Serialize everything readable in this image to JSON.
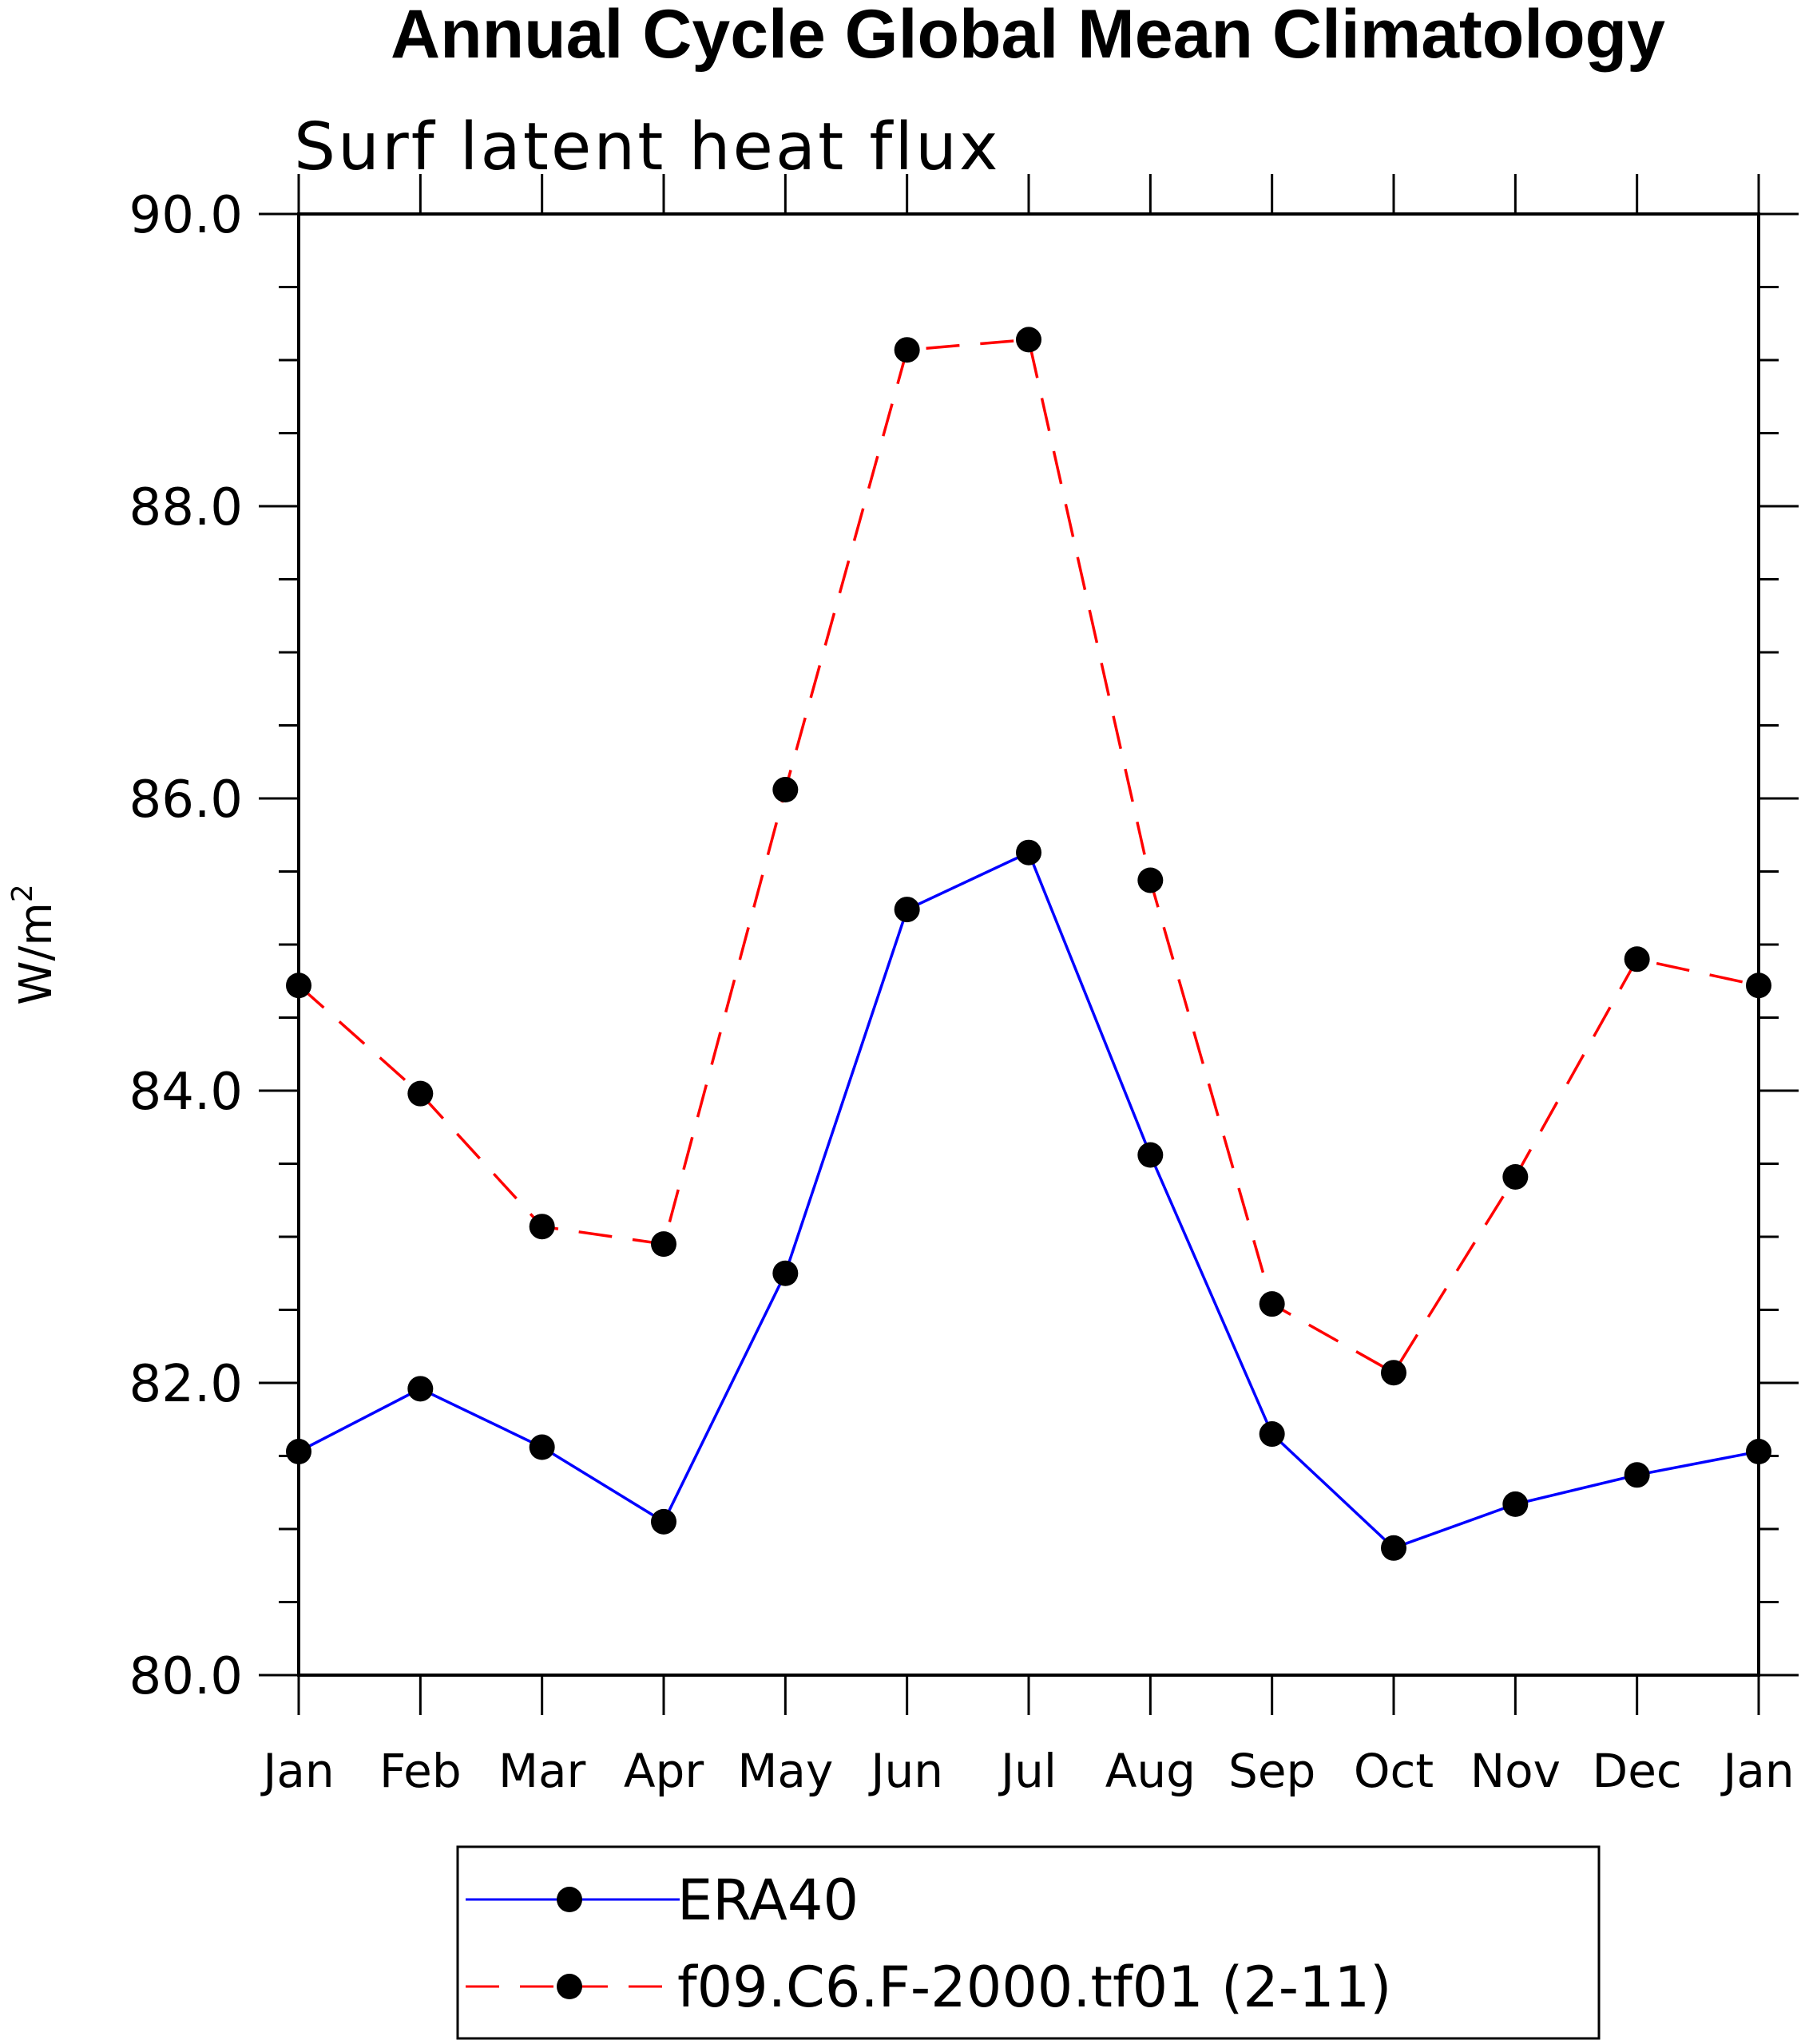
{
  "chart_data": {
    "type": "line",
    "title": "Annual Cycle Global Mean Climatology",
    "subtitle": "Surf latent heat flux",
    "ylabel": "W/m",
    "ylabel_superscript": "2",
    "ylim": [
      80.0,
      90.0
    ],
    "yticks": [
      "80.0",
      "82.0",
      "84.0",
      "86.0",
      "88.0",
      "90.0"
    ],
    "ytick_values": [
      80,
      82,
      84,
      86,
      88,
      90
    ],
    "categories": [
      "Jan",
      "Feb",
      "Mar",
      "Apr",
      "May",
      "Jun",
      "Jul",
      "Aug",
      "Sep",
      "Oct",
      "Nov",
      "Dec",
      "Jan"
    ],
    "series": [
      {
        "name": "ERA40",
        "color": "#0000ff",
        "dashed": false,
        "values": [
          81.53,
          81.96,
          81.56,
          81.05,
          82.75,
          85.24,
          85.63,
          83.56,
          81.65,
          80.87,
          81.17,
          81.37,
          81.53
        ]
      },
      {
        "name": "f09.C6.F-2000.tf01 (2-11)",
        "color": "#ff0000",
        "dashed": true,
        "values": [
          84.72,
          83.98,
          83.07,
          82.95,
          86.06,
          89.07,
          89.14,
          85.44,
          82.54,
          82.07,
          83.41,
          84.9,
          84.72
        ]
      }
    ],
    "legend": {
      "location": "bottom-center",
      "entries": [
        "ERA40",
        "f09.C6.F-2000.tf01 (2-11)"
      ]
    },
    "marker_color": "#000000"
  }
}
